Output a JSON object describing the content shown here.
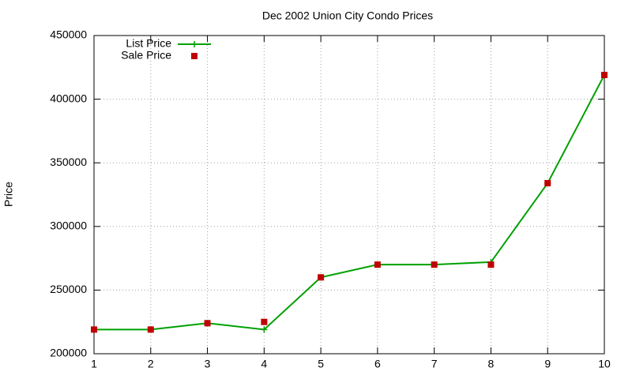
{
  "chart_data": {
    "type": "line",
    "title": "Dec 2002 Union City Condo Prices",
    "y_label": "Price",
    "x": [
      1,
      2,
      3,
      4,
      5,
      6,
      7,
      8,
      9,
      10
    ],
    "series": [
      {
        "name": "List Price",
        "color": "#00a000",
        "mode": "lines+points",
        "values": [
          219000,
          219000,
          224000,
          219000,
          260000,
          270000,
          270000,
          272000,
          334000,
          419000
        ]
      },
      {
        "name": "Sale Price",
        "color": "#c00000",
        "mode": "points",
        "values": [
          219000,
          219000,
          224000,
          225000,
          260000,
          270000,
          270000,
          270000,
          334000,
          419000
        ]
      }
    ],
    "xlim": [
      1,
      10
    ],
    "xticks": [
      1,
      2,
      3,
      4,
      5,
      6,
      7,
      8,
      9,
      10
    ],
    "ylim": [
      200000,
      450000
    ],
    "yticks": [
      200000,
      250000,
      300000,
      350000,
      400000,
      450000
    ],
    "grid": true,
    "legend": "top-left"
  }
}
